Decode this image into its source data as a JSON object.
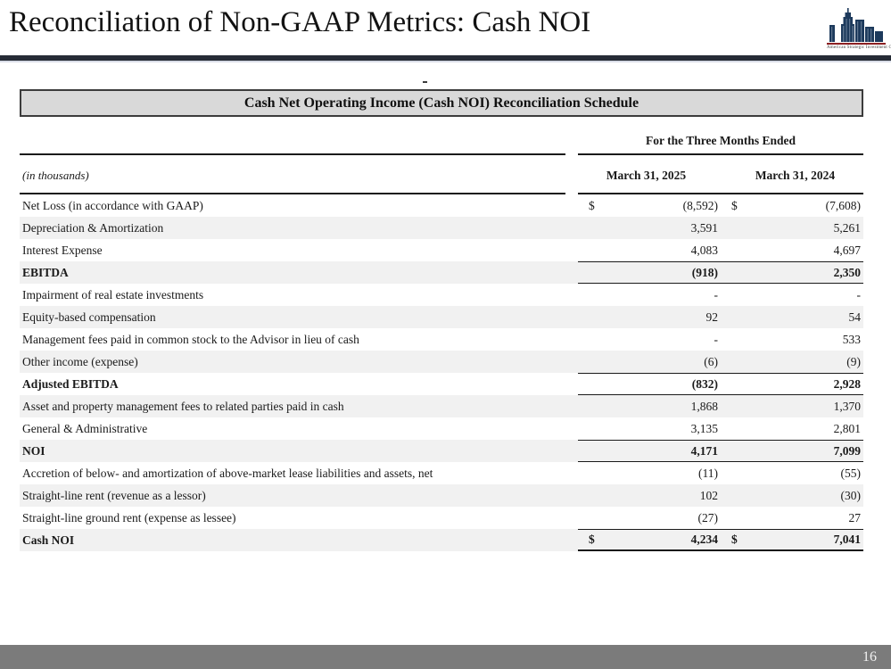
{
  "page": {
    "title": "Reconciliation of Non-GAAP Metrics: Cash NOI",
    "page_number": "16",
    "logo_caption": "American Strategic Investment Co."
  },
  "colors": {
    "header_rule": "#262c36",
    "schedule_title_bg": "#d9d9d9",
    "row_stripe": "#f1f1f1",
    "footer_bar": "#7b7b7b",
    "logo_navy": "#1d3a5c",
    "logo_red": "#8c2022"
  },
  "table": {
    "title": "Cash Net Operating Income (Cash NOI) Reconciliation Schedule",
    "period_header": "For the Three Months Ended",
    "units_note": "(in thousands)",
    "columns": [
      "March 31, 2025",
      "March 31, 2024"
    ],
    "rows": [
      {
        "label": "Net Loss (in accordance with GAAP)",
        "values": [
          "(8,592)",
          "(7,608)"
        ],
        "dollar": true
      },
      {
        "label": "Depreciation & Amortization",
        "values": [
          "3,591",
          "5,261"
        ]
      },
      {
        "label": "Interest Expense",
        "values": [
          "4,083",
          "4,697"
        ]
      },
      {
        "label": "EBITDA",
        "values": [
          "(918)",
          "2,350"
        ],
        "bold": true,
        "rule_top": true,
        "rule_bottom": true
      },
      {
        "label": "Impairment of real estate investments",
        "values": [
          "-",
          "-"
        ]
      },
      {
        "label": "Equity-based compensation",
        "values": [
          "92",
          "54"
        ]
      },
      {
        "label": "Management fees paid in common stock to the Advisor in lieu of cash",
        "values": [
          "-",
          "533"
        ]
      },
      {
        "label": "Other income (expense)",
        "values": [
          "(6)",
          "(9)"
        ]
      },
      {
        "label": "Adjusted EBITDA",
        "values": [
          "(832)",
          "2,928"
        ],
        "bold": true,
        "rule_top": true,
        "rule_bottom": true
      },
      {
        "label": "Asset and property management fees to related parties paid in cash",
        "values": [
          "1,868",
          "1,370"
        ]
      },
      {
        "label": "General & Administrative",
        "values": [
          "3,135",
          "2,801"
        ]
      },
      {
        "label": "NOI",
        "values": [
          "4,171",
          "7,099"
        ],
        "bold": true,
        "rule_top": true,
        "rule_bottom": true
      },
      {
        "label": "Accretion of below- and amortization of above-market lease liabilities and assets, net",
        "values": [
          "(11)",
          "(55)"
        ]
      },
      {
        "label": "Straight-line rent (revenue as a lessor)",
        "values": [
          "102",
          "(30)"
        ]
      },
      {
        "label": "Straight-line ground rent (expense as lessee)",
        "values": [
          "(27)",
          "27"
        ]
      },
      {
        "label": "Cash NOI",
        "values": [
          "4,234",
          "7,041"
        ],
        "bold": true,
        "dollar": true,
        "rule_top": true,
        "thick_bottom": true
      }
    ]
  }
}
